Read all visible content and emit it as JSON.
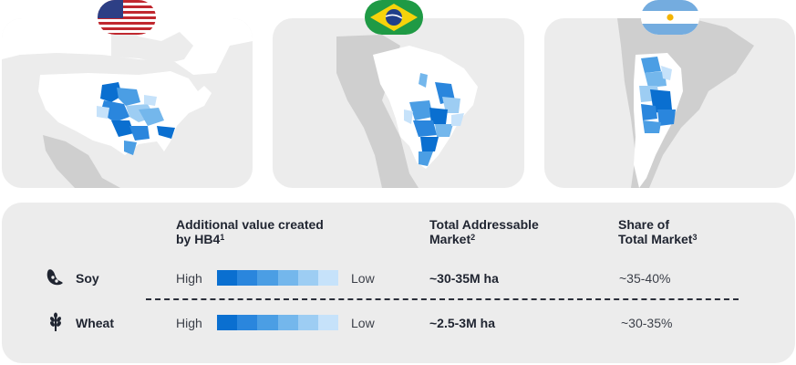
{
  "countries": [
    {
      "id": "us",
      "flag": "us-flag-icon"
    },
    {
      "id": "br",
      "flag": "brazil-flag-icon"
    },
    {
      "id": "ar",
      "flag": "argentina-flag-icon"
    }
  ],
  "colors": {
    "card_bg": "#ececec",
    "land": "#ffffff",
    "other_land": "#cfcfcf",
    "scale": [
      "#0a6fd0",
      "#2a86dd",
      "#4b9ee4",
      "#74b7ec",
      "#9dcdf3",
      "#c6e2fa"
    ]
  },
  "table": {
    "headers": {
      "value": "Additional value created",
      "value_line2": "by HB4",
      "value_sup": "1",
      "tam": "Total Addressable",
      "tam_line2": "Market",
      "tam_sup": "2",
      "share": "Share of",
      "share_line2": "Total Market",
      "share_sup": "3"
    },
    "rows": [
      {
        "icon": "soy-icon",
        "crop": "Soy",
        "high": "High",
        "low": "Low",
        "tam": "~30-35M ha",
        "share": "~35-40%"
      },
      {
        "icon": "wheat-icon",
        "crop": "Wheat",
        "high": "High",
        "low": "Low",
        "tam": "~2.5-3M ha",
        "share": "~30-35%"
      }
    ]
  }
}
